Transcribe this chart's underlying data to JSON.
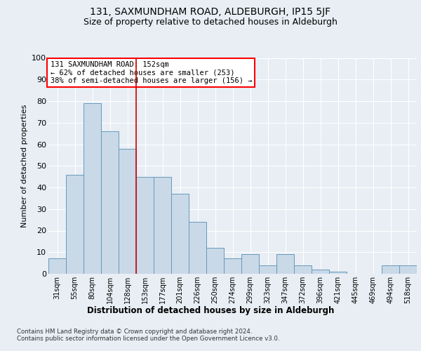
{
  "title": "131, SAXMUNDHAM ROAD, ALDEBURGH, IP15 5JF",
  "subtitle": "Size of property relative to detached houses in Aldeburgh",
  "xlabel": "Distribution of detached houses by size in Aldeburgh",
  "ylabel": "Number of detached properties",
  "categories": [
    "31sqm",
    "55sqm",
    "80sqm",
    "104sqm",
    "128sqm",
    "153sqm",
    "177sqm",
    "201sqm",
    "226sqm",
    "250sqm",
    "274sqm",
    "299sqm",
    "323sqm",
    "347sqm",
    "372sqm",
    "396sqm",
    "421sqm",
    "445sqm",
    "469sqm",
    "494sqm",
    "518sqm"
  ],
  "values": [
    7,
    46,
    79,
    66,
    58,
    45,
    45,
    37,
    24,
    12,
    7,
    9,
    4,
    9,
    4,
    2,
    1,
    0,
    0,
    4,
    4
  ],
  "bar_color": "#c9d9e8",
  "bar_edge_color": "#6699bb",
  "annotation_text": "131 SAXMUNDHAM ROAD: 152sqm\n← 62% of detached houses are smaller (253)\n38% of semi-detached houses are larger (156) →",
  "annotation_box_color": "white",
  "annotation_box_edge_color": "red",
  "footer_text": "Contains HM Land Registry data © Crown copyright and database right 2024.\nContains public sector information licensed under the Open Government Licence v3.0.",
  "ylim": [
    0,
    100
  ],
  "yticks": [
    0,
    10,
    20,
    30,
    40,
    50,
    60,
    70,
    80,
    90,
    100
  ],
  "background_color": "#e8eef4",
  "plot_background_color": "#e8eef4",
  "title_fontsize": 10,
  "subtitle_fontsize": 9,
  "grid_color": "white",
  "red_line_color": "#cc0000",
  "red_line_idx": 5
}
